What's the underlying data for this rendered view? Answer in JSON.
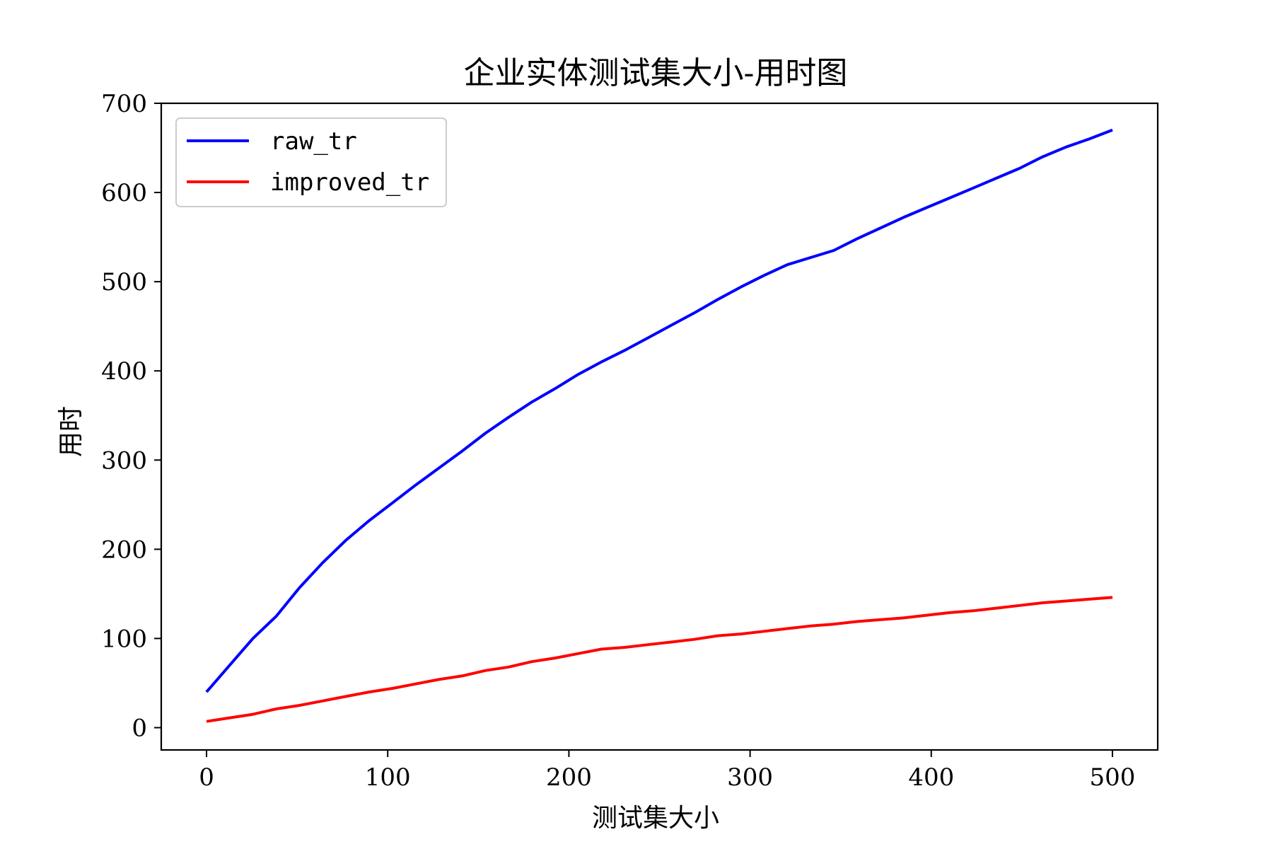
{
  "chart_data": {
    "type": "line",
    "title": "企业实体测试集大小-用时图",
    "xlabel": "测试集大小",
    "ylabel": "用时",
    "xlim": [
      -25,
      525
    ],
    "ylim": [
      -25,
      700
    ],
    "xticks": [
      0,
      100,
      200,
      300,
      400,
      500
    ],
    "yticks": [
      0,
      100,
      200,
      300,
      400,
      500,
      600,
      700
    ],
    "grid": false,
    "legend_position": "top-left",
    "series": [
      {
        "name": "raw_tr",
        "color": "#0000ff",
        "x": [
          0,
          12.8,
          25.6,
          38.5,
          51.3,
          64.1,
          76.9,
          89.7,
          102.6,
          115.4,
          128.2,
          141.0,
          153.8,
          166.7,
          179.5,
          192.3,
          205.1,
          217.9,
          230.8,
          243.6,
          256.4,
          269.2,
          282.1,
          294.9,
          307.7,
          320.5,
          333.3,
          346.2,
          359.0,
          371.8,
          384.6,
          397.4,
          410.3,
          423.1,
          435.9,
          448.7,
          461.5,
          474.4,
          487.2,
          500
        ],
        "y": [
          40,
          70,
          100,
          125,
          157,
          185,
          210,
          232,
          252,
          272,
          291,
          310,
          330,
          348,
          365,
          380,
          396,
          410,
          423,
          437,
          451,
          465,
          480,
          494,
          507,
          519,
          527,
          535,
          548,
          560,
          572,
          583,
          594,
          605,
          616,
          627,
          640,
          651,
          660,
          670
        ]
      },
      {
        "name": "improved_tr",
        "color": "#ff0000",
        "x": [
          0,
          12.8,
          25.6,
          38.5,
          51.3,
          64.1,
          76.9,
          89.7,
          102.6,
          115.4,
          128.2,
          141.0,
          153.8,
          166.7,
          179.5,
          192.3,
          205.1,
          217.9,
          230.8,
          243.6,
          256.4,
          269.2,
          282.1,
          294.9,
          307.7,
          320.5,
          333.3,
          346.2,
          359.0,
          371.8,
          384.6,
          397.4,
          410.3,
          423.1,
          435.9,
          448.7,
          461.5,
          474.4,
          487.2,
          500
        ],
        "y": [
          7,
          11,
          15,
          21,
          25,
          30,
          35,
          40,
          44,
          49,
          54,
          58,
          64,
          68,
          74,
          78,
          83,
          88,
          90,
          93,
          96,
          99,
          103,
          105,
          108,
          111,
          114,
          116,
          119,
          121,
          123,
          126,
          129,
          131,
          134,
          137,
          140,
          142,
          144,
          146
        ]
      }
    ]
  }
}
